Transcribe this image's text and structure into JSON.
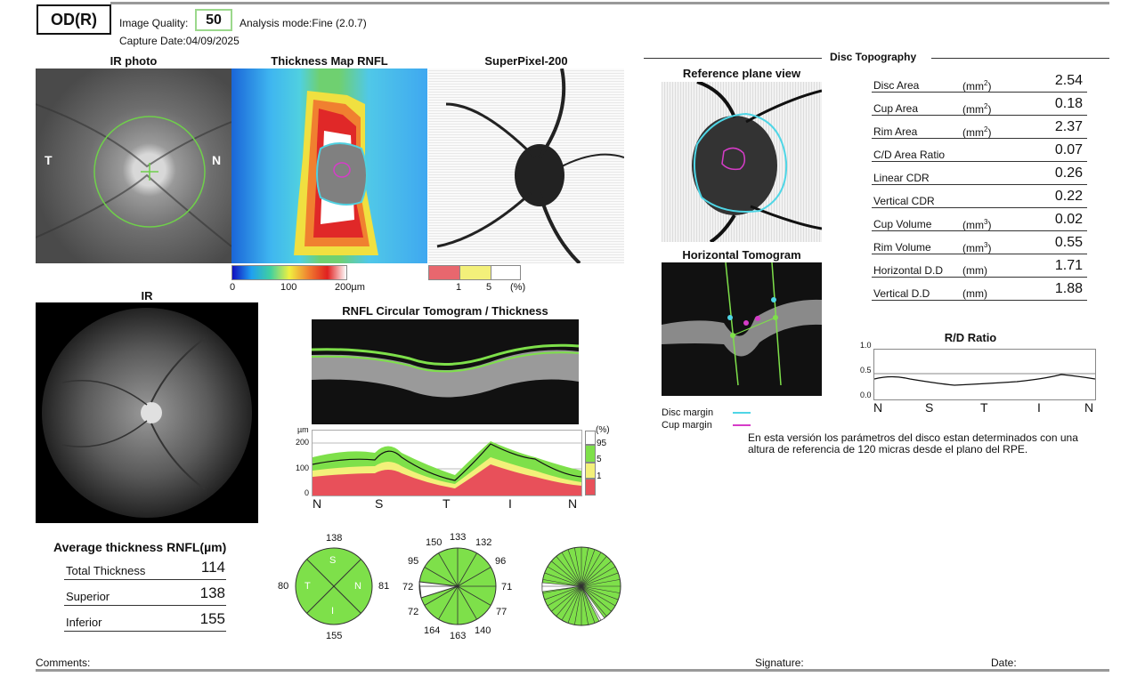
{
  "header": {
    "eye": "OD(R)",
    "image_quality_label": "Image Quality:",
    "image_quality_value": "50",
    "analysis_mode": "Analysis mode:Fine (2.0.7)",
    "capture_date": "Capture Date:04/09/2025"
  },
  "ir_photo": {
    "title": "IR photo",
    "label_t": "T",
    "label_n": "N"
  },
  "thickness_map": {
    "title": "Thickness Map RNFL",
    "scale": [
      "0",
      "100",
      "200µm"
    ]
  },
  "superpixel": {
    "title": "SuperPixel-200",
    "scale": [
      "1",
      "5",
      "(%)"
    ]
  },
  "ir": {
    "title": "IR"
  },
  "tomogram": {
    "title": "RNFL Circular Tomogram / Thickness"
  },
  "thickness_plot": {
    "unit": "µm",
    "yticks": [
      "200",
      "100",
      "0"
    ],
    "xticks": [
      "N",
      "S",
      "T",
      "I",
      "N"
    ],
    "legend": [
      "(%)",
      "95",
      "5",
      "1"
    ]
  },
  "average_thickness": {
    "title": "Average thickness RNFL(µm)",
    "rows": [
      {
        "label": "Total Thickness",
        "value": "114"
      },
      {
        "label": "Superior",
        "value": "138"
      },
      {
        "label": "Inferior",
        "value": "155"
      }
    ]
  },
  "quadrants": {
    "top": "138",
    "left": "80",
    "right": "81",
    "bottom": "155",
    "letters": [
      "S",
      "T",
      "N",
      "I"
    ]
  },
  "clock": {
    "values": [
      "150",
      "133",
      "132",
      "96",
      "71",
      "77",
      "140",
      "163",
      "164",
      "72",
      "72",
      "95"
    ]
  },
  "disc_topography": {
    "title": "Disc Topography",
    "reference_plane_title": "Reference plane view",
    "horizontal_tomogram_title": "Horizontal Tomogram",
    "disc_margin": "Disc margin",
    "cup_margin": "Cup margin",
    "params": [
      {
        "label": "Disc Area",
        "unit": "(mm2)",
        "value": "2.54"
      },
      {
        "label": "Cup Area",
        "unit": "(mm2)",
        "value": "0.18"
      },
      {
        "label": "Rim Area",
        "unit": "(mm2)",
        "value": "2.37"
      },
      {
        "label": "C/D Area Ratio",
        "unit": "",
        "value": "0.07"
      },
      {
        "label": "Linear CDR",
        "unit": "",
        "value": "0.26"
      },
      {
        "label": "Vertical CDR",
        "unit": "",
        "value": "0.22"
      },
      {
        "label": "Cup Volume",
        "unit": "(mm3)",
        "value": "0.02"
      },
      {
        "label": "Rim Volume",
        "unit": "(mm3)",
        "value": "0.55"
      },
      {
        "label": "Horizontal D.D",
        "unit": "(mm)",
        "value": "1.71"
      },
      {
        "label": "Vertical D.D",
        "unit": "(mm)",
        "value": "1.88"
      }
    ],
    "rd_ratio": {
      "title": "R/D Ratio",
      "yticks": [
        "1.0",
        "0.5",
        "0.0"
      ],
      "xticks": [
        "N",
        "S",
        "T",
        "I",
        "N"
      ]
    },
    "note": "En esta versión los parámetros del disco estan determinados con una altura de referencia de 120 micras desde el plano del RPE."
  },
  "footer": {
    "comments": "Comments:",
    "signature": "Signature:",
    "date": "Date:"
  },
  "colors": {
    "green": "#7ee04a",
    "yellow": "#f5f07a",
    "red": "#e8505a",
    "cyan": "#4fd6e6",
    "magenta": "#d63cc8"
  }
}
